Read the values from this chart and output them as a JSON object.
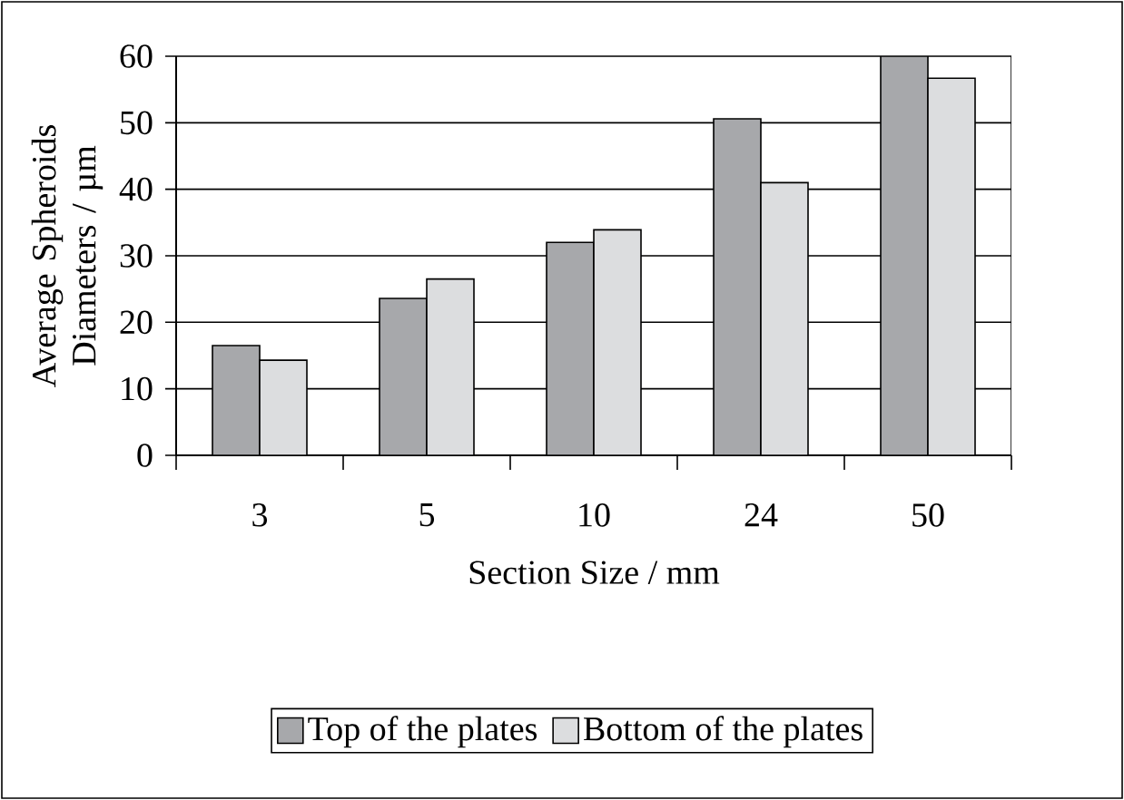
{
  "chart_data": {
    "type": "bar",
    "xlabel": "Section Size / mm",
    "ylabel": "Average Spheroids Diameters / µm",
    "categories": [
      "3",
      "5",
      "10",
      "24",
      "50"
    ],
    "series": [
      {
        "name": "Top of the plates",
        "color": "#a7a8ab",
        "values": [
          16.5,
          23.6,
          32,
          50.6,
          60
        ]
      },
      {
        "name": "Bottom of the plates",
        "color": "#dcdddf",
        "values": [
          14.3,
          26.5,
          33.9,
          41,
          56.7
        ]
      }
    ],
    "ylim": [
      0,
      60
    ],
    "yticks": [
      0,
      10,
      20,
      30,
      40,
      50,
      60
    ],
    "grid": "y",
    "legend": "bottom"
  }
}
